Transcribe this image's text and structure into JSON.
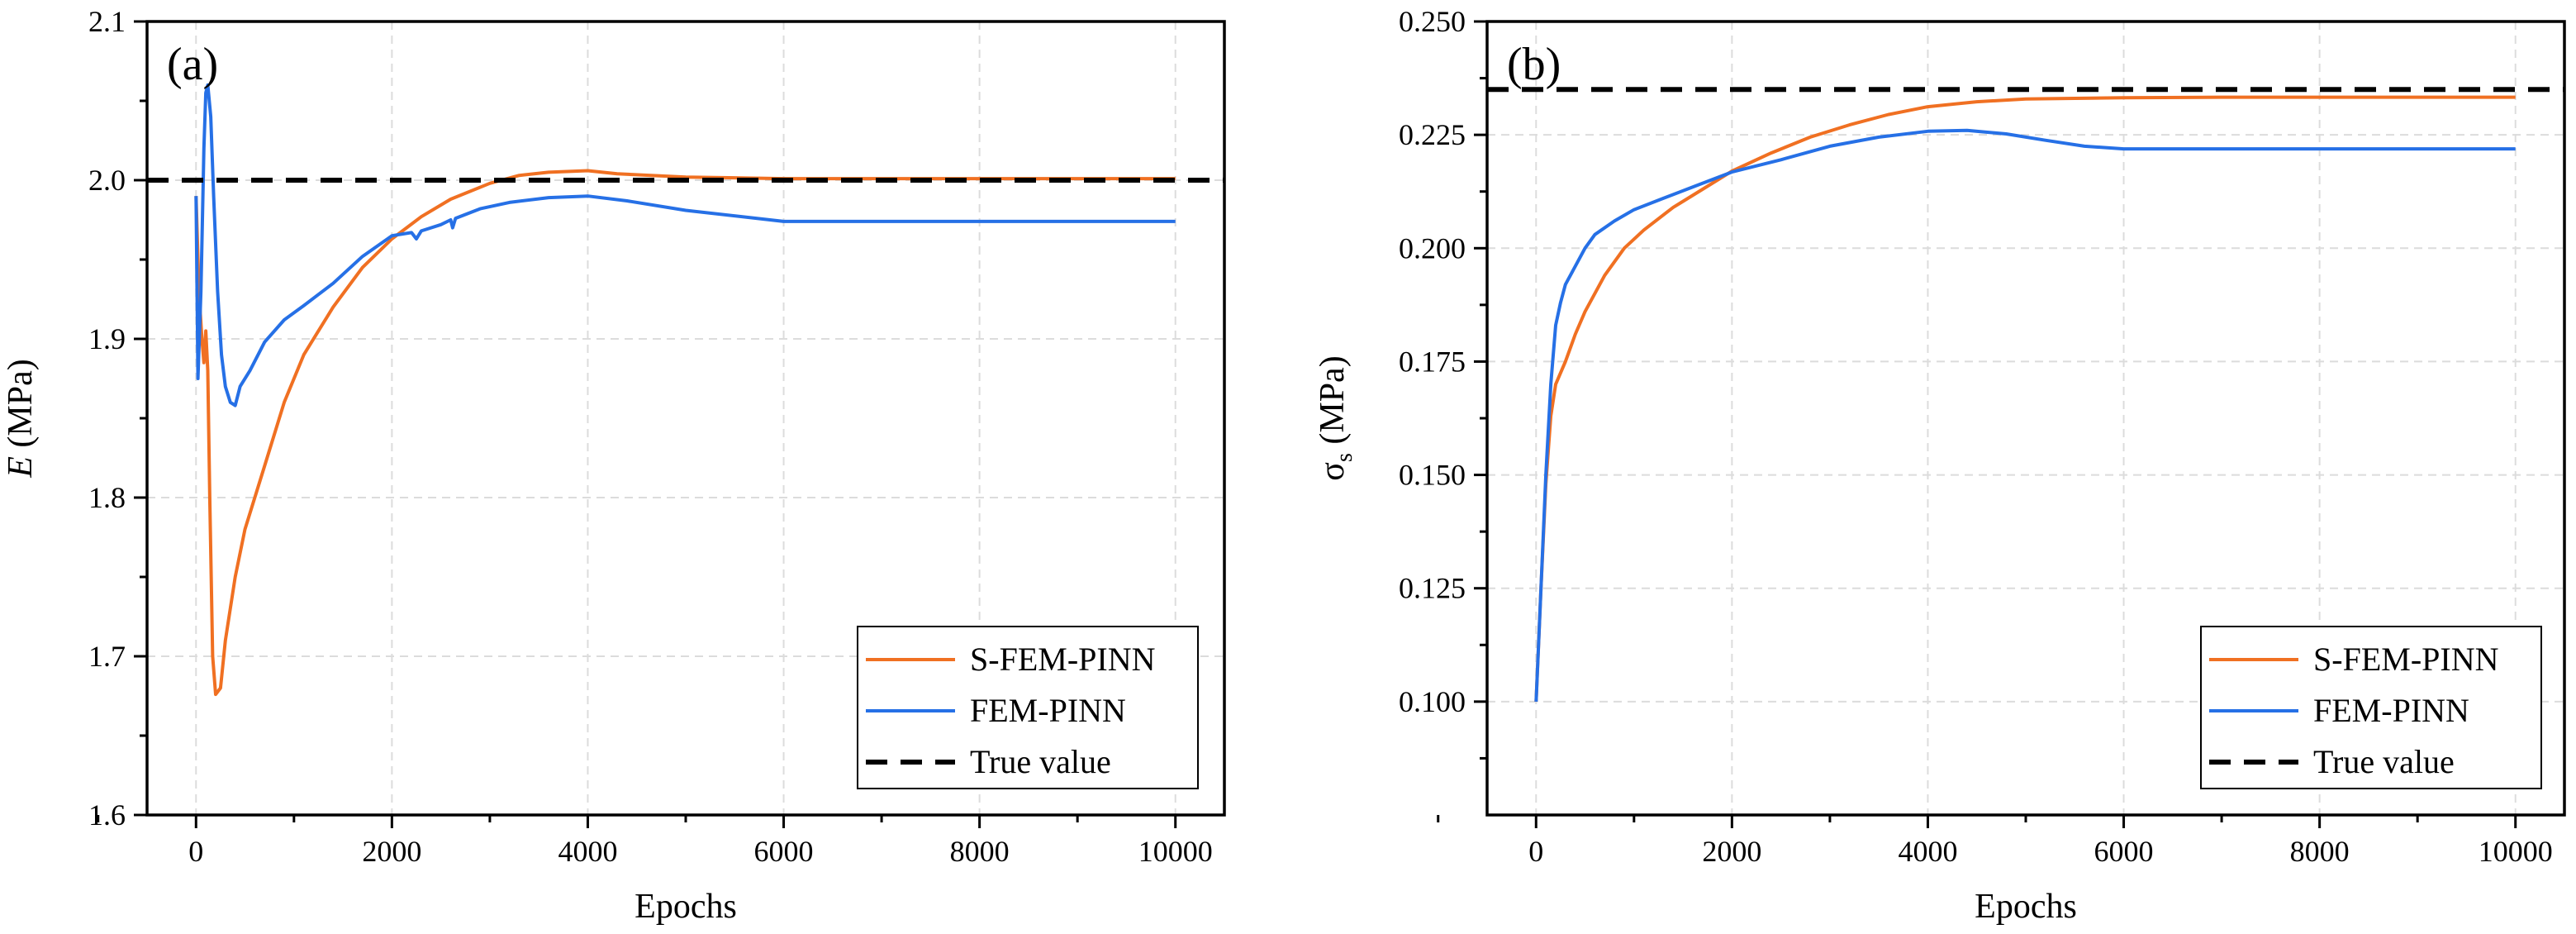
{
  "chart_data": [
    {
      "type": "line",
      "panel_label": "(a)",
      "xlabel": "Epochs",
      "ylabel": {
        "symbol": "E",
        "unit": " (MPa)"
      },
      "xlim": [
        -500,
        10500
      ],
      "ylim": [
        1.6,
        2.1
      ],
      "xticks": [
        0,
        2000,
        4000,
        6000,
        8000,
        10000
      ],
      "xtick_labels": [
        "0",
        "2000",
        "4000",
        "6000",
        "8000",
        "10000"
      ],
      "yticks": [
        1.6,
        1.7,
        1.8,
        1.9,
        2.0,
        2.1
      ],
      "ytick_labels": [
        "1.6",
        "1.7",
        "1.8",
        "1.9",
        "2.0",
        "2.1"
      ],
      "legend_position": "bottom-right",
      "series": [
        {
          "name": "S-FEM-PINN",
          "color": "#f07022",
          "style": "solid",
          "x": [
            0,
            30,
            60,
            80,
            100,
            120,
            140,
            170,
            200,
            250,
            300,
            400,
            500,
            700,
            900,
            1100,
            1400,
            1700,
            2000,
            2300,
            2600,
            3000,
            3300,
            3600,
            4000,
            4300,
            5000,
            6000,
            7000,
            8000,
            9000,
            10000
          ],
          "y": [
            1.99,
            1.93,
            1.9,
            1.885,
            1.905,
            1.88,
            1.8,
            1.7,
            1.676,
            1.68,
            1.71,
            1.75,
            1.78,
            1.82,
            1.86,
            1.89,
            1.92,
            1.945,
            1.963,
            1.977,
            1.988,
            1.998,
            2.003,
            2.005,
            2.006,
            2.004,
            2.002,
            2.001,
            2.001,
            2.001,
            2.001,
            2.001
          ]
        },
        {
          "name": "FEM-PINN",
          "color": "#2670e6",
          "style": "solid",
          "x": [
            0,
            20,
            50,
            80,
            100,
            120,
            150,
            180,
            220,
            260,
            300,
            350,
            400,
            450,
            550,
            700,
            900,
            1100,
            1400,
            1700,
            2000,
            2200,
            2250,
            2300,
            2500,
            2600,
            2620,
            2650,
            2900,
            3200,
            3600,
            4000,
            4400,
            5000,
            6000,
            7000,
            8000,
            9000,
            10000
          ],
          "y": [
            1.99,
            1.875,
            1.93,
            2.02,
            2.055,
            2.06,
            2.04,
            1.99,
            1.93,
            1.89,
            1.87,
            1.86,
            1.858,
            1.87,
            1.88,
            1.898,
            1.912,
            1.921,
            1.935,
            1.952,
            1.965,
            1.967,
            1.963,
            1.968,
            1.972,
            1.975,
            1.97,
            1.976,
            1.982,
            1.986,
            1.989,
            1.99,
            1.987,
            1.981,
            1.974,
            1.974,
            1.974,
            1.974,
            1.974
          ]
        },
        {
          "name": "True value",
          "color": "#000000",
          "style": "dashed",
          "x": [
            -500,
            10500
          ],
          "y": [
            2.0,
            2.0
          ]
        }
      ]
    },
    {
      "type": "line",
      "panel_label": "(b)",
      "xlabel": "Epochs",
      "ylabel": {
        "symbol": "σ",
        "subscript": "s",
        "unit": " (MPa)"
      },
      "xlim": [
        -500,
        10500
      ],
      "ylim": [
        0.075,
        0.25
      ],
      "xticks": [
        0,
        2000,
        4000,
        6000,
        8000,
        10000
      ],
      "xtick_labels": [
        "0",
        "2000",
        "4000",
        "6000",
        "8000",
        "10000"
      ],
      "yticks": [
        0.1,
        0.125,
        0.15,
        0.175,
        0.2,
        0.225,
        0.25
      ],
      "ytick_labels": [
        "0.100",
        "0.125",
        "0.150",
        "0.175",
        "0.200",
        "0.225",
        "0.250"
      ],
      "legend_position": "bottom-right",
      "series": [
        {
          "name": "S-FEM-PINN",
          "color": "#f07022",
          "style": "solid",
          "x": [
            0,
            50,
            100,
            150,
            200,
            300,
            400,
            500,
            700,
            900,
            1100,
            1400,
            1700,
            2000,
            2400,
            2800,
            3200,
            3600,
            4000,
            4500,
            5000,
            6000,
            7000,
            8000,
            9000,
            10000
          ],
          "y": [
            0.1,
            0.125,
            0.148,
            0.163,
            0.17,
            0.175,
            0.181,
            0.186,
            0.194,
            0.2,
            0.204,
            0.209,
            0.213,
            0.217,
            0.221,
            0.2245,
            0.2272,
            0.2295,
            0.2312,
            0.2323,
            0.2329,
            0.2332,
            0.2333,
            0.2333,
            0.2333,
            0.2333
          ]
        },
        {
          "name": "FEM-PINN",
          "color": "#2670e6",
          "style": "solid",
          "x": [
            0,
            50,
            100,
            150,
            200,
            250,
            300,
            400,
            500,
            600,
            800,
            1000,
            1300,
            1600,
            2000,
            2500,
            3000,
            3500,
            4000,
            4400,
            4800,
            5200,
            5600,
            6000,
            7000,
            8000,
            9000,
            10000
          ],
          "y": [
            0.1,
            0.125,
            0.15,
            0.17,
            0.183,
            0.188,
            0.192,
            0.196,
            0.2,
            0.203,
            0.206,
            0.2085,
            0.211,
            0.2135,
            0.2168,
            0.2195,
            0.2225,
            0.2245,
            0.2258,
            0.226,
            0.2252,
            0.2238,
            0.2225,
            0.2219,
            0.2219,
            0.2219,
            0.2219,
            0.2219
          ]
        },
        {
          "name": "True value",
          "color": "#000000",
          "style": "dashed",
          "x": [
            -500,
            10500
          ],
          "y": [
            0.235,
            0.235
          ]
        }
      ]
    }
  ]
}
